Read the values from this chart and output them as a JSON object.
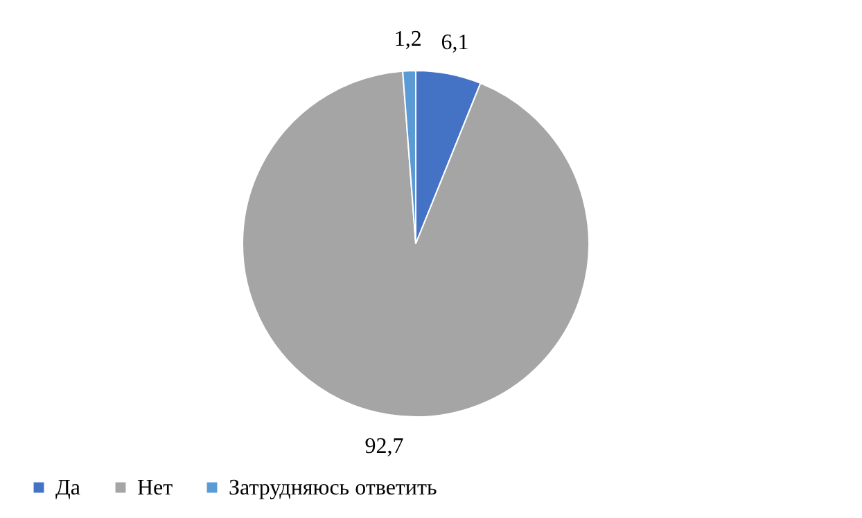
{
  "chart_data": {
    "type": "pie",
    "categories": [
      "Да",
      "Нет",
      "Затрудняюсь ответить"
    ],
    "values": [
      6.1,
      92.7,
      1.2
    ],
    "colors": [
      "#4472c4",
      "#a5a5a5",
      "#5b9bd5"
    ],
    "value_labels": [
      "6,1",
      "92,7",
      "1,2"
    ],
    "legend": "bottom"
  }
}
